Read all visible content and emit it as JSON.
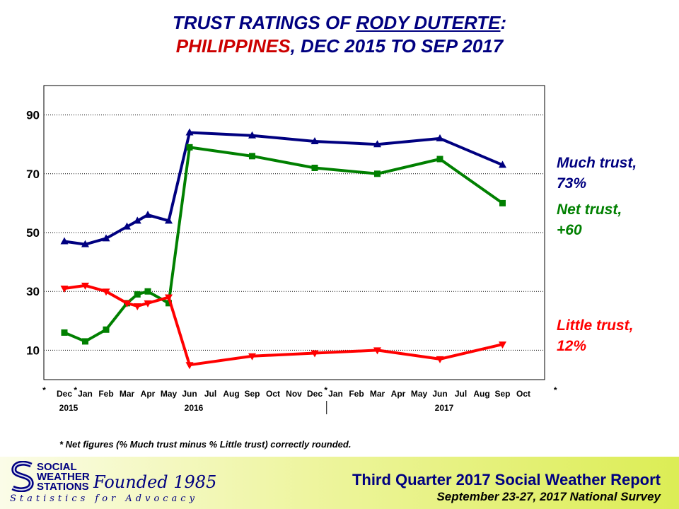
{
  "title": {
    "line1_prefix": "TRUST RATINGS OF ",
    "line1_name": "RODY DUTERTE",
    "line1_suffix": ":",
    "line2_country": "PHILIPPINES",
    "line2_rest": ", DEC 2015 TO SEP 2017"
  },
  "chart_data": {
    "type": "line",
    "title": "TRUST RATINGS OF RODY DUTERTE: PHILIPPINES, DEC 2015 TO SEP 2017",
    "ylim": [
      0,
      100
    ],
    "yticks": [
      10,
      30,
      50,
      70,
      90
    ],
    "grid": "horizontal dotted",
    "month_labels": [
      "Dec",
      "Jan",
      "Feb",
      "Mar",
      "Apr",
      "May",
      "Jun",
      "Jul",
      "Aug",
      "Sep",
      "Oct",
      "Nov",
      "Dec",
      "Jan",
      "Feb",
      "Mar",
      "Apr",
      "May",
      "Jun",
      "Jul",
      "Aug",
      "Sep",
      "Oct"
    ],
    "year_labels": [
      {
        "label": "2015",
        "month_index": 0
      },
      {
        "label": "2016",
        "month_index": 6
      },
      {
        "label": "2017",
        "month_index": 18
      }
    ],
    "year_divider_month_index": 12.5,
    "asterisk_month_indices": [
      -1,
      0.5,
      12.5,
      23.5
    ],
    "series": [
      {
        "name": "Much trust",
        "color": "#000080",
        "marker": "triangle-up",
        "points": [
          [
            0,
            47
          ],
          [
            1,
            46
          ],
          [
            2,
            48
          ],
          [
            3,
            52
          ],
          [
            3.5,
            54
          ],
          [
            4,
            56
          ],
          [
            5,
            54
          ],
          [
            6,
            84
          ],
          [
            9,
            83
          ],
          [
            12,
            81
          ],
          [
            15,
            80
          ],
          [
            18,
            82
          ],
          [
            21,
            73
          ]
        ]
      },
      {
        "name": "Net trust",
        "color": "#008000",
        "marker": "square",
        "points": [
          [
            0,
            16
          ],
          [
            1,
            13
          ],
          [
            2,
            17
          ],
          [
            3,
            26
          ],
          [
            3.5,
            29
          ],
          [
            4,
            30
          ],
          [
            5,
            26
          ],
          [
            6,
            79
          ],
          [
            9,
            76
          ],
          [
            12,
            72
          ],
          [
            15,
            70
          ],
          [
            18,
            75
          ],
          [
            21,
            60
          ]
        ]
      },
      {
        "name": "Little trust",
        "color": "#ff0000",
        "marker": "triangle-down",
        "points": [
          [
            0,
            31
          ],
          [
            1,
            32
          ],
          [
            2,
            30
          ],
          [
            3,
            26
          ],
          [
            3.5,
            25
          ],
          [
            4,
            26
          ],
          [
            5,
            28
          ],
          [
            6,
            5
          ],
          [
            9,
            8
          ],
          [
            12,
            9
          ],
          [
            15,
            10
          ],
          [
            18,
            7
          ],
          [
            21,
            12
          ]
        ]
      }
    ]
  },
  "labels": {
    "much_line1": "Much trust,",
    "much_line2": "73%",
    "net_line1": "Net trust,",
    "net_line2": "+60",
    "little_line1": "Little trust,",
    "little_line2": "12%"
  },
  "colors": {
    "much": "#000080",
    "net": "#008000",
    "little": "#ff0000"
  },
  "footnote": "* Net figures (% Much trust minus % Little trust) correctly rounded.",
  "footer": {
    "logo_line1": "SOCIAL",
    "logo_line2": "WEATHER",
    "logo_line3": "STATIONS",
    "logo_script": "Founded 1985",
    "logo_tagline": "Statistics for Advocacy",
    "report_title": "Third Quarter 2017 Social Weather Report",
    "report_subtitle": "September 23-27, 2017 National Survey"
  }
}
